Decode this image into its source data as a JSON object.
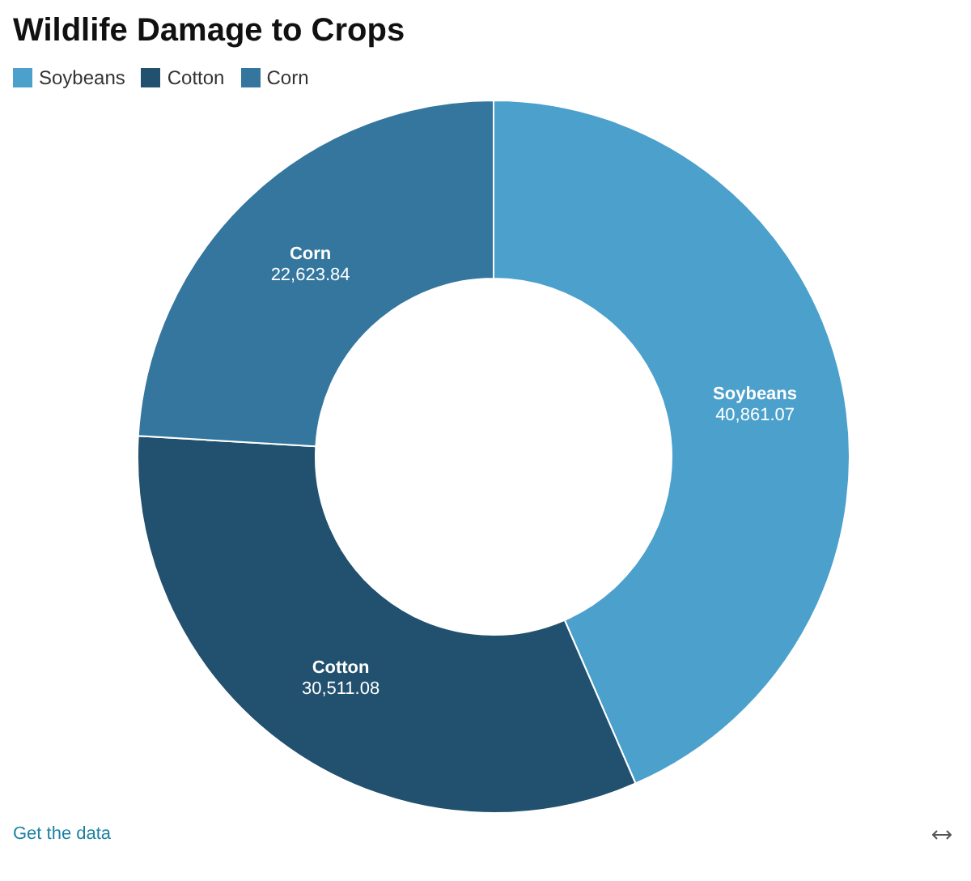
{
  "chart_data": {
    "type": "donut",
    "title": "Wildlife Damage to Crops",
    "categories": [
      "Soybeans",
      "Cotton",
      "Corn"
    ],
    "values": [
      40861.07,
      30511.08,
      22623.84
    ],
    "value_labels": [
      "40,861.07",
      "30,511.08",
      "22,623.84"
    ],
    "colors": [
      "#4ba0cc",
      "#22506f",
      "#34769e"
    ],
    "legend": "top left",
    "annotations": [
      "Get the data"
    ]
  }
}
